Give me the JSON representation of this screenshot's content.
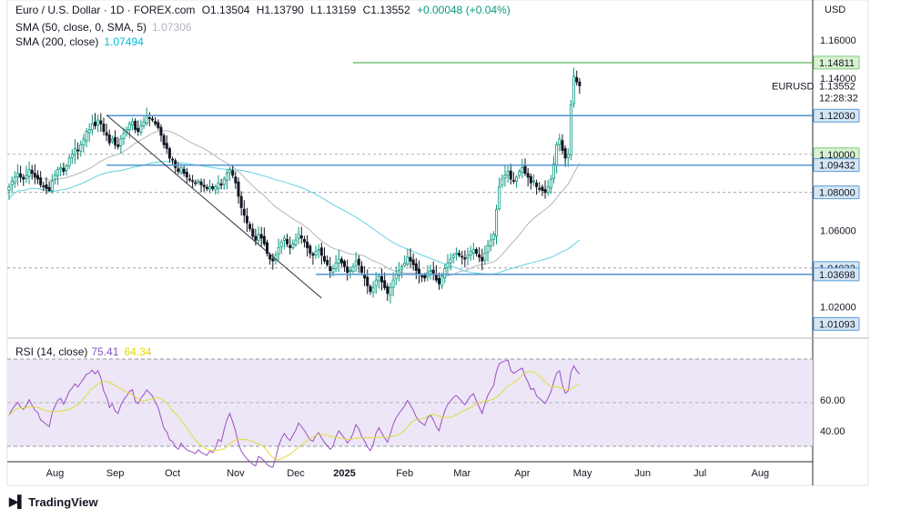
{
  "header": {
    "symbol": "Euro / U.S. Dollar · 1D · FOREX.com",
    "open": "O1.13504",
    "high": "H1.13790",
    "low": "L1.13159",
    "close": "C1.13552",
    "change": "+0.00048 (+0.04%)"
  },
  "indicators": {
    "sma50_label": "SMA (50, close, 0, SMA, 5)",
    "sma50_value": "1.07306",
    "sma200_label": "SMA (200, close)",
    "sma200_value": "1.07494",
    "rsi_label": "RSI (14, close)",
    "rsi_value": "75.41",
    "rsi_ma_value": "64.34"
  },
  "currency": "USD",
  "brand": "TradingView",
  "colors": {
    "up": "#089981",
    "down": "#131722",
    "sma50": "#b2b5be",
    "sma200": "#5fd3e0",
    "level_line": "#5b9bd5",
    "resistance_top": "#7fc97f",
    "rsi_line": "#9c4fc4",
    "rsi_ma": "#e2dc3b",
    "rsi_band": "#ece6f6"
  },
  "chart_data": {
    "type": "candlestick",
    "title": "Euro / U.S. Dollar · 1D · FOREX.com",
    "ylim": [
      1.0035,
      1.181
    ],
    "y_ticks": [
      "1.16000",
      "1.14000",
      "1.06000",
      "1.02000"
    ],
    "x_ticks": [
      "Aug",
      "Sep",
      "Oct",
      "Nov",
      "Dec",
      "2025",
      "Feb",
      "Mar",
      "Apr",
      "May",
      "Jun",
      "Jul",
      "Aug"
    ],
    "price_labels": [
      {
        "text": "1.14811",
        "value": 1.14811,
        "style": "green"
      },
      {
        "text": "1.12030",
        "value": 1.1203,
        "style": "blue"
      },
      {
        "text": "1.10000",
        "value": 1.1,
        "style": "green"
      },
      {
        "text": "1.09432",
        "value": 1.09432,
        "style": "blue"
      },
      {
        "text": "1.08000",
        "value": 1.08,
        "style": "blue"
      },
      {
        "text": "1.04033",
        "value": 1.04033,
        "style": "blue"
      },
      {
        "text": "1.03698",
        "value": 1.03698,
        "style": "blue"
      },
      {
        "text": "1.01093",
        "value": 1.01093,
        "style": "blue"
      }
    ],
    "current_label": {
      "symbol": "EURUSD",
      "price": "1.13552",
      "countdown": "12:28:32"
    },
    "levels": [
      {
        "value": 1.14811,
        "from_x": 120,
        "color": "green"
      },
      {
        "value": 1.1203,
        "from_x": 34,
        "color": "blue"
      },
      {
        "value": 1.09432,
        "from_x": 34,
        "color": "blue"
      },
      {
        "value": 1.03698,
        "from_x": 107,
        "color": "blue"
      }
    ],
    "dashed_levels": [
      1.1,
      1.08,
      1.04033
    ],
    "trendline": {
      "from": [
        34,
        1.1206
      ],
      "to": [
        109,
        1.0245
      ]
    },
    "candles_close": [
      1.083,
      1.086,
      1.088,
      1.09,
      1.088,
      1.087,
      1.089,
      1.092,
      1.09,
      1.088,
      1.087,
      1.084,
      1.083,
      1.082,
      1.081,
      1.086,
      1.089,
      1.092,
      1.093,
      1.091,
      1.094,
      1.098,
      1.1,
      1.103,
      1.102,
      1.105,
      1.108,
      1.112,
      1.113,
      1.116,
      1.115,
      1.118,
      1.116,
      1.112,
      1.11,
      1.106,
      1.108,
      1.105,
      1.104,
      1.108,
      1.111,
      1.113,
      1.116,
      1.117,
      1.113,
      1.112,
      1.115,
      1.117,
      1.12,
      1.119,
      1.118,
      1.116,
      1.114,
      1.11,
      1.105,
      1.103,
      1.098,
      1.097,
      1.093,
      1.091,
      1.093,
      1.09,
      1.088,
      1.087,
      1.086,
      1.085,
      1.086,
      1.084,
      1.083,
      1.082,
      1.083,
      1.082,
      1.083,
      1.085,
      1.084,
      1.087,
      1.09,
      1.092,
      1.089,
      1.085,
      1.078,
      1.072,
      1.068,
      1.064,
      1.061,
      1.057,
      1.055,
      1.058,
      1.056,
      1.053,
      1.048,
      1.045,
      1.044,
      1.047,
      1.051,
      1.054,
      1.056,
      1.053,
      1.051,
      1.053,
      1.055,
      1.058,
      1.056,
      1.054,
      1.051,
      1.048,
      1.047,
      1.049,
      1.05,
      1.047,
      1.044,
      1.042,
      1.039,
      1.04,
      1.043,
      1.045,
      1.043,
      1.041,
      1.038,
      1.039,
      1.041,
      1.044,
      1.042,
      1.038,
      1.035,
      1.031,
      1.028,
      1.03,
      1.034,
      1.036,
      1.033,
      1.03,
      1.027,
      1.03,
      1.034,
      1.037,
      1.039,
      1.041,
      1.043,
      1.046,
      1.044,
      1.042,
      1.039,
      1.037,
      1.036,
      1.035,
      1.038,
      1.039,
      1.037,
      1.034,
      1.032,
      1.036,
      1.04,
      1.043,
      1.045,
      1.047,
      1.048,
      1.047,
      1.046,
      1.045,
      1.047,
      1.049,
      1.05,
      1.048,
      1.046,
      1.044,
      1.048,
      1.052,
      1.055,
      1.058,
      1.071,
      1.083,
      1.087,
      1.089,
      1.091,
      1.087,
      1.086,
      1.088,
      1.091,
      1.093,
      1.09,
      1.088,
      1.085,
      1.086,
      1.083,
      1.082,
      1.081,
      1.08,
      1.083,
      1.087,
      1.095,
      1.105,
      1.108,
      1.102,
      1.098,
      1.1,
      1.126,
      1.141,
      1.138,
      1.136
    ]
  }
}
